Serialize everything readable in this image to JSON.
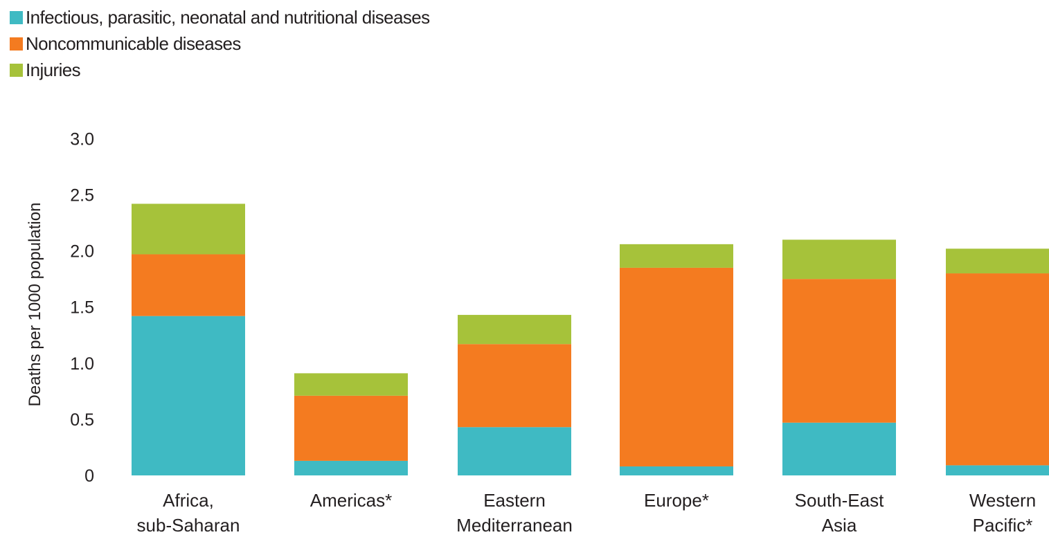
{
  "chart_data": {
    "type": "bar",
    "stacked": true,
    "categories": [
      [
        "Africa,",
        "sub-Saharan"
      ],
      [
        "Americas*"
      ],
      [
        "Eastern",
        "Mediterranean"
      ],
      [
        "Europe*"
      ],
      [
        "South-East",
        "Asia"
      ],
      [
        "Western",
        "Pacific*"
      ]
    ],
    "series": [
      {
        "name": "Infectious, parasitic, neonatal and nutritional diseases",
        "color": "#3fbac3",
        "values": [
          1.42,
          0.13,
          0.43,
          0.08,
          0.47,
          0.09
        ]
      },
      {
        "name": "Noncommunicable diseases",
        "color": "#f47b20",
        "values": [
          0.55,
          0.58,
          0.74,
          1.77,
          1.28,
          1.71
        ]
      },
      {
        "name": "Injuries",
        "color": "#a6c23a",
        "values": [
          0.45,
          0.2,
          0.26,
          0.21,
          0.35,
          0.22
        ]
      }
    ],
    "ylabel": "Deaths per 1000 population",
    "yticks": [
      "0",
      "0.5",
      "1.0",
      "1.5",
      "2.0",
      "2.5",
      "3.0"
    ],
    "ylim": [
      0,
      3.0
    ],
    "legend_position": "top-left",
    "grid": false
  }
}
